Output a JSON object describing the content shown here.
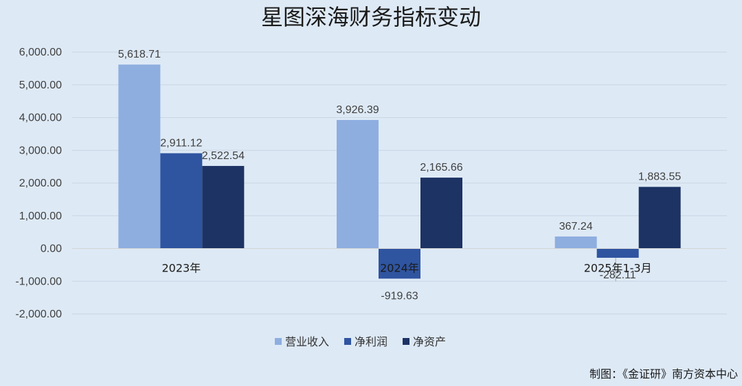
{
  "chart_data": {
    "type": "bar",
    "title": "星图深海财务指标变动",
    "categories": [
      "2023年",
      "2024年",
      "2025年1-3月"
    ],
    "series": [
      {
        "name": "营业收入",
        "values": [
          5618.71,
          3926.39,
          367.24
        ],
        "color": "#8eaee0"
      },
      {
        "name": "净利润",
        "values": [
          2911.12,
          -919.63,
          -282.11
        ],
        "color": "#2f54a0"
      },
      {
        "name": "净资产",
        "values": [
          2522.54,
          2165.66,
          1883.55
        ],
        "color": "#1d3364"
      }
    ],
    "data_labels": [
      [
        "5,618.71",
        "3,926.39",
        "367.24"
      ],
      [
        "2,911.12",
        "-919.63",
        "-282.11"
      ],
      [
        "2,522.54",
        "2,165.66",
        "1,883.55"
      ]
    ],
    "y_ticks": [
      6000,
      5000,
      4000,
      3000,
      2000,
      1000,
      0,
      -1000,
      -2000
    ],
    "y_tick_labels": [
      "6,000.00",
      "5,000.00",
      "4,000.00",
      "3,000.00",
      "2,000.00",
      "1,000.00",
      "0.00",
      "-1,000.00",
      "-2,000.00"
    ],
    "ylim": [
      -2000,
      6000
    ],
    "xlabel": "",
    "ylabel": "",
    "grid": true,
    "legend_position": "bottom"
  },
  "source": "制图：《金证研》南方资本中心"
}
